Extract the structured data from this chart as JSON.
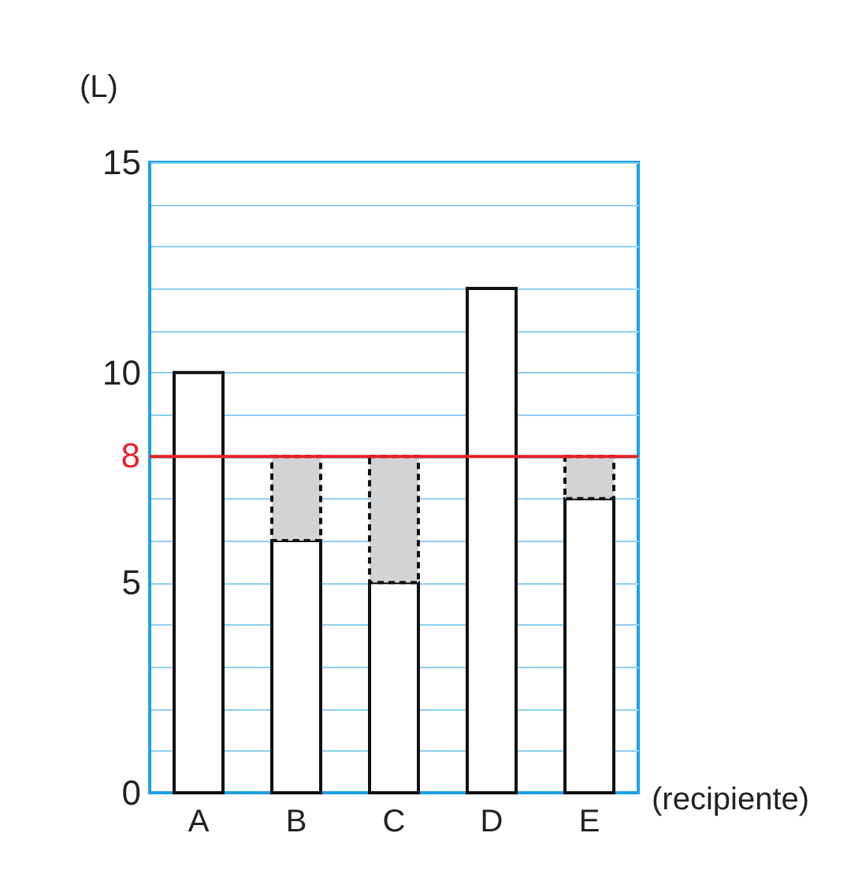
{
  "chart_data": {
    "type": "bar",
    "stacked": true,
    "categories": [
      "A",
      "B",
      "C",
      "D",
      "E"
    ],
    "series": [
      {
        "color": "#ffffff",
        "values": [
          10,
          6,
          5,
          12,
          7
        ]
      },
      {
        "color": "#d1d3d4",
        "line_style": "dashed",
        "values": [
          null,
          2,
          3,
          null,
          1
        ]
      }
    ],
    "ylabel": "(L)",
    "xlabel": "(recipiente)",
    "ylim": [
      0,
      15
    ],
    "yticks": [
      0,
      {
        "value": 1,
        "label": null
      },
      {
        "value": 2,
        "label": null
      },
      {
        "value": 3,
        "label": null
      },
      {
        "value": 4,
        "label": null
      },
      5,
      {
        "value": 6,
        "label": null
      },
      {
        "value": 7,
        "label": null
      },
      {
        "value": 8,
        "label": null
      },
      {
        "value": 9,
        "label": null
      },
      10,
      {
        "value": 11,
        "label": null
      },
      {
        "value": 12,
        "label": null
      },
      {
        "value": 13,
        "label": null
      },
      {
        "value": 14,
        "label": null
      },
      15
    ],
    "grid": "y",
    "ref_lines": [
      {
        "axis": "y",
        "value": 8,
        "label": "8",
        "color": "#e8202a"
      }
    ]
  }
}
